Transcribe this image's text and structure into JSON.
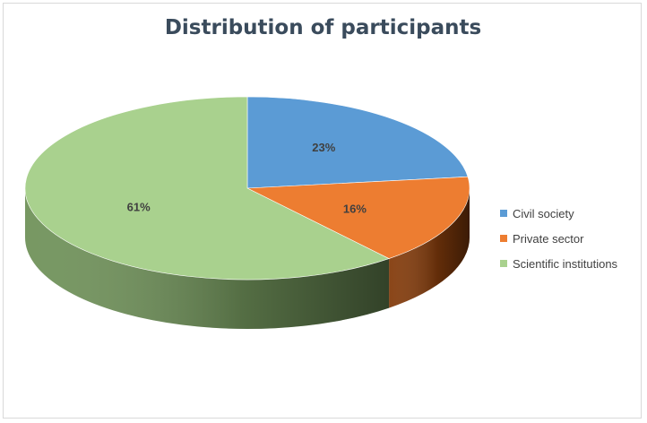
{
  "chart_data": {
    "type": "pie",
    "title": "Distribution of participants",
    "categories": [
      "Civil society",
      "Private sector",
      "Scientific institutions"
    ],
    "values": [
      23,
      16,
      61
    ],
    "data_labels": [
      "23%",
      "16%",
      "61%"
    ],
    "colors": [
      "#5b9bd5",
      "#ed7d31",
      "#a9d18e"
    ],
    "side_colors": [
      "#3f6e98",
      "#843c0c",
      "#70925a"
    ],
    "legend_position": "right",
    "style": "3d"
  }
}
